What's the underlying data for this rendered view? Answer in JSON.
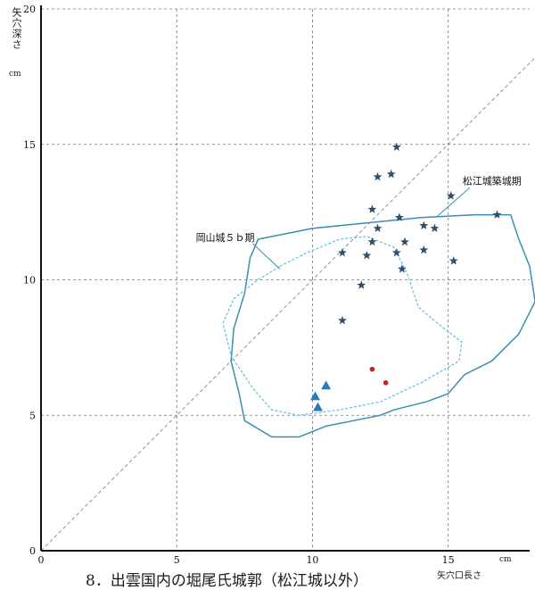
{
  "caption": "8．出雲国内の堀尾氏城郭（松江城以外）",
  "chart_data": {
    "type": "scatter",
    "xlabel": "矢穴口長さ",
    "ylabel": "矢穴深さ",
    "x_unit": "cm",
    "y_unit": "cm",
    "xlim": [
      0,
      18
    ],
    "ylim": [
      0,
      20
    ],
    "xticks": [
      0,
      5,
      10,
      15
    ],
    "yticks": [
      0,
      5,
      10,
      15,
      20
    ],
    "grid": true,
    "annotations": [
      {
        "text": "松江城築城期",
        "x": 15.2,
        "y": 13.3
      },
      {
        "text": "岡山城５ｂ期",
        "x": 5.8,
        "y": 11.3
      }
    ],
    "series": [
      {
        "marker": "star",
        "color": "#2f4f6a",
        "points": [
          [
            13.1,
            14.9
          ],
          [
            12.4,
            13.8
          ],
          [
            12.9,
            13.9
          ],
          [
            15.1,
            13.1
          ],
          [
            12.2,
            12.6
          ],
          [
            16.8,
            12.4
          ],
          [
            13.2,
            12.3
          ],
          [
            12.4,
            11.9
          ],
          [
            14.1,
            12.0
          ],
          [
            14.5,
            11.9
          ],
          [
            12.2,
            11.4
          ],
          [
            13.4,
            11.4
          ],
          [
            11.1,
            11.0
          ],
          [
            13.1,
            11.0
          ],
          [
            14.1,
            11.1
          ],
          [
            12.0,
            10.9
          ],
          [
            13.3,
            10.4
          ],
          [
            15.2,
            10.7
          ],
          [
            11.8,
            9.8
          ],
          [
            11.1,
            8.5
          ]
        ]
      },
      {
        "marker": "triangle",
        "color": "#2a7ab8",
        "points": [
          [
            10.5,
            6.1
          ],
          [
            10.1,
            5.7
          ],
          [
            10.2,
            5.3
          ]
        ]
      },
      {
        "marker": "dot",
        "color": "#cc1f1f",
        "points": [
          [
            12.2,
            6.7
          ],
          [
            12.7,
            6.2
          ]
        ]
      }
    ],
    "outlines": [
      {
        "label": "松江城築城期",
        "style": "solid",
        "color": "#3a8fb3",
        "points": [
          [
            8.0,
            11.5
          ],
          [
            10.0,
            11.9
          ],
          [
            12.0,
            12.1
          ],
          [
            14.0,
            12.3
          ],
          [
            16.0,
            12.4
          ],
          [
            17.3,
            12.4
          ],
          [
            17.6,
            11.5
          ],
          [
            18.0,
            10.5
          ],
          [
            18.2,
            9.2
          ],
          [
            17.6,
            8.0
          ],
          [
            16.6,
            7.0
          ],
          [
            15.6,
            6.5
          ],
          [
            15.0,
            5.8
          ],
          [
            14.2,
            5.5
          ],
          [
            13.0,
            5.2
          ],
          [
            12.5,
            5.0
          ],
          [
            11.5,
            4.8
          ],
          [
            10.5,
            4.6
          ],
          [
            9.5,
            4.2
          ],
          [
            8.5,
            4.2
          ],
          [
            7.5,
            4.8
          ],
          [
            7.3,
            5.8
          ],
          [
            7.0,
            7.0
          ],
          [
            7.1,
            8.2
          ],
          [
            7.5,
            9.5
          ],
          [
            7.7,
            10.8
          ]
        ]
      },
      {
        "label": "岡山城５ｂ期",
        "style": "dashed",
        "color": "#5bbfe0",
        "points": [
          [
            8.8,
            10.5
          ],
          [
            9.8,
            11.0
          ],
          [
            11.0,
            11.5
          ],
          [
            12.0,
            11.6
          ],
          [
            13.0,
            11.2
          ],
          [
            13.5,
            10.2
          ],
          [
            13.9,
            9.0
          ],
          [
            14.6,
            8.4
          ],
          [
            15.5,
            7.7
          ],
          [
            15.4,
            7.0
          ],
          [
            14.0,
            6.2
          ],
          [
            12.5,
            5.5
          ],
          [
            11.0,
            5.2
          ],
          [
            9.5,
            5.0
          ],
          [
            8.5,
            5.2
          ],
          [
            7.8,
            6.0
          ],
          [
            7.0,
            7.2
          ],
          [
            6.7,
            8.4
          ],
          [
            7.1,
            9.3
          ],
          [
            8.0,
            10.0
          ]
        ]
      }
    ],
    "reference_line": {
      "from": [
        0,
        0
      ],
      "to": [
        18,
        18
      ],
      "style": "dashed"
    }
  }
}
